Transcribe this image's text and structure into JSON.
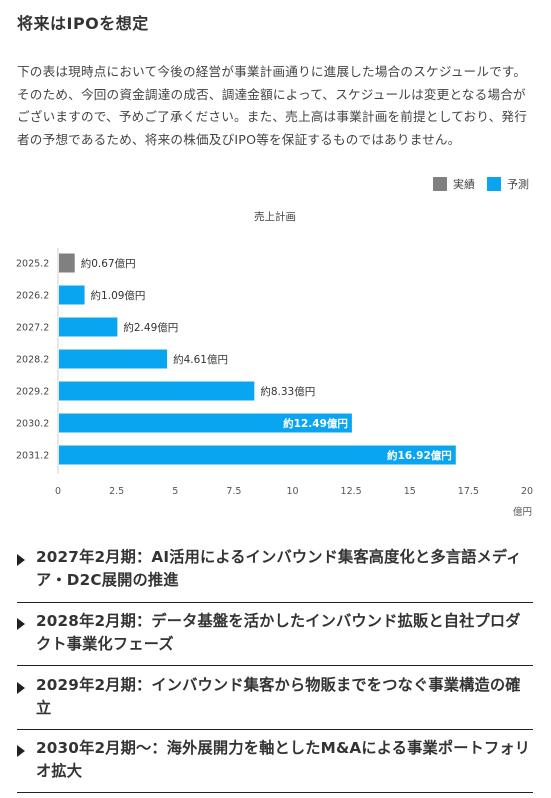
{
  "section": {
    "title": "将来はIPOを想定",
    "description": "下の表は現時点において今後の経営が事業計画通りに進展した場合のスケジュールです。そのため、今回の資金調達の成否、調達金額によって、スケジュールは変更となる場合がございますので、予めご了承ください。また、売上高は事業計画を前提としており、発行者の予想であるため、将来の株価及びIPO等を保証するものではありません。"
  },
  "legend": {
    "items": [
      {
        "label": "実績",
        "color": "#808080"
      },
      {
        "label": "予測",
        "color": "#0aa5f0"
      }
    ]
  },
  "chart_data": {
    "type": "bar",
    "orientation": "horizontal",
    "title": "売上計画",
    "xlabel": "億円",
    "xlim": [
      0,
      20
    ],
    "xticks": [
      0,
      2.5,
      5,
      7.5,
      10,
      12.5,
      15,
      17.5,
      20
    ],
    "categories": [
      "2025.2",
      "2026.2",
      "2027.2",
      "2028.2",
      "2029.2",
      "2030.2",
      "2031.2"
    ],
    "values": [
      0.67,
      1.09,
      2.49,
      4.61,
      8.33,
      12.49,
      16.92
    ],
    "data_labels": [
      "約0.67億円",
      "約1.09億円",
      "約2.49億円",
      "約4.61億円",
      "約8.33億円",
      "約12.49億円",
      "約16.92億円"
    ],
    "series_kind": [
      "実績",
      "予測",
      "予測",
      "予測",
      "予測",
      "予測",
      "予測"
    ],
    "colors": {
      "実績": "#808080",
      "予測": "#0aa5f0"
    },
    "legend_position": "top-right",
    "grid": false
  },
  "milestones": [
    {
      "text": "2027年2月期：AI活用によるインバウンド集客高度化と多言語メディア・D2C展開の推進"
    },
    {
      "text": "2028年2月期：データ基盤を活かしたインバウンド拡販と自社プロダクト事業化フェーズ"
    },
    {
      "text": "2029年2月期：インバウンド集客から物販までをつなぐ事業構造の確立"
    },
    {
      "text": "2030年2月期〜：海外展開力を軸としたM&Aによる事業ポートフォリオ拡大"
    }
  ]
}
